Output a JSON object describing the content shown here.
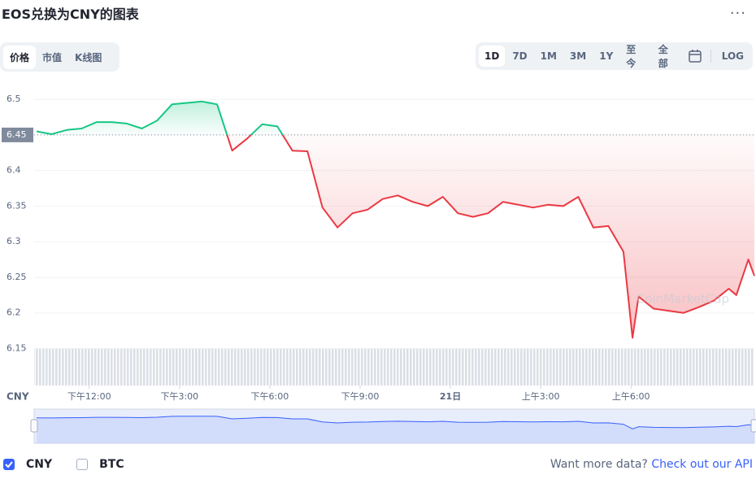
{
  "title": "EOS兑换为CNY的图表",
  "tabs": [
    "价格",
    "市值",
    "K线图"
  ],
  "ranges": [
    "1D",
    "7D",
    "1M",
    "3M",
    "1Y",
    "至今",
    "全部"
  ],
  "log_label": "LOG",
  "legend": [
    {
      "label": "CNY",
      "checked": true
    },
    {
      "label": "BTC",
      "checked": false
    }
  ],
  "footer": {
    "prompt": "Want more data?",
    "link": "Check out our API"
  },
  "chart_data": {
    "type": "line",
    "unit_label": "CNY",
    "watermark": "CoinMarketCap",
    "up_color": "#16c784",
    "down_color": "#ea3943",
    "reference": 6.45,
    "xlim": [
      10.17,
      34.1
    ],
    "xticks": [
      {
        "value": 12,
        "label": "下午12:00"
      },
      {
        "value": 15,
        "label": "下午3:00"
      },
      {
        "value": 18,
        "label": "下午6:00"
      },
      {
        "value": 21,
        "label": "下午9:00"
      },
      {
        "value": 24,
        "label": "21日"
      },
      {
        "value": 27,
        "label": "上午3:00"
      },
      {
        "value": 30,
        "label": "上午6:00"
      }
    ],
    "ylim": [
      6.098,
      6.531
    ],
    "yticks": [
      6.15,
      6.2,
      6.25,
      6.3,
      6.35,
      6.4,
      6.45,
      6.5
    ],
    "grid": true,
    "x": [
      10.25,
      10.75,
      11.25,
      11.75,
      12.25,
      12.75,
      13.25,
      13.75,
      14.25,
      14.75,
      15.25,
      15.75,
      16.25,
      16.75,
      17.25,
      17.75,
      18.25,
      18.75,
      19.25,
      19.75,
      20.25,
      20.75,
      21.25,
      21.75,
      22.25,
      22.75,
      23.25,
      23.75,
      24.25,
      24.75,
      25.25,
      25.75,
      26.25,
      26.75,
      27.25,
      27.75,
      28.25,
      28.75,
      29.25,
      29.75,
      30.05,
      30.25,
      30.75,
      31.25,
      31.75,
      32.25,
      32.75,
      33.25,
      33.5,
      33.9,
      34.1
    ],
    "series": [
      {
        "name": "CNY",
        "values": [
          6.455,
          6.451,
          6.457,
          6.459,
          6.468,
          6.468,
          6.466,
          6.459,
          6.47,
          6.493,
          6.495,
          6.497,
          6.493,
          6.428,
          6.445,
          6.465,
          6.462,
          6.428,
          6.427,
          6.348,
          6.32,
          6.34,
          6.345,
          6.36,
          6.365,
          6.356,
          6.35,
          6.363,
          6.34,
          6.335,
          6.34,
          6.356,
          6.352,
          6.348,
          6.352,
          6.35,
          6.363,
          6.32,
          6.322,
          6.286,
          6.165,
          6.223,
          6.206,
          6.203,
          6.2,
          6.208,
          6.217,
          6.234,
          6.225,
          6.275,
          6.252
        ]
      }
    ]
  }
}
